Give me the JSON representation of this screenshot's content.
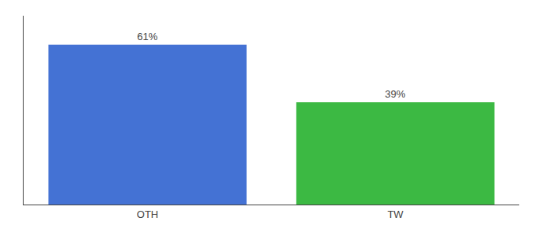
{
  "chart_data": {
    "type": "bar",
    "categories": [
      "OTH",
      "TW"
    ],
    "values": [
      61,
      39
    ],
    "value_labels": [
      "61%",
      "39%"
    ],
    "colors": [
      "#4472d4",
      "#3cb943"
    ],
    "ylim": [
      0,
      72
    ],
    "grid": false,
    "data_labels": true,
    "tick_labels": "x"
  }
}
